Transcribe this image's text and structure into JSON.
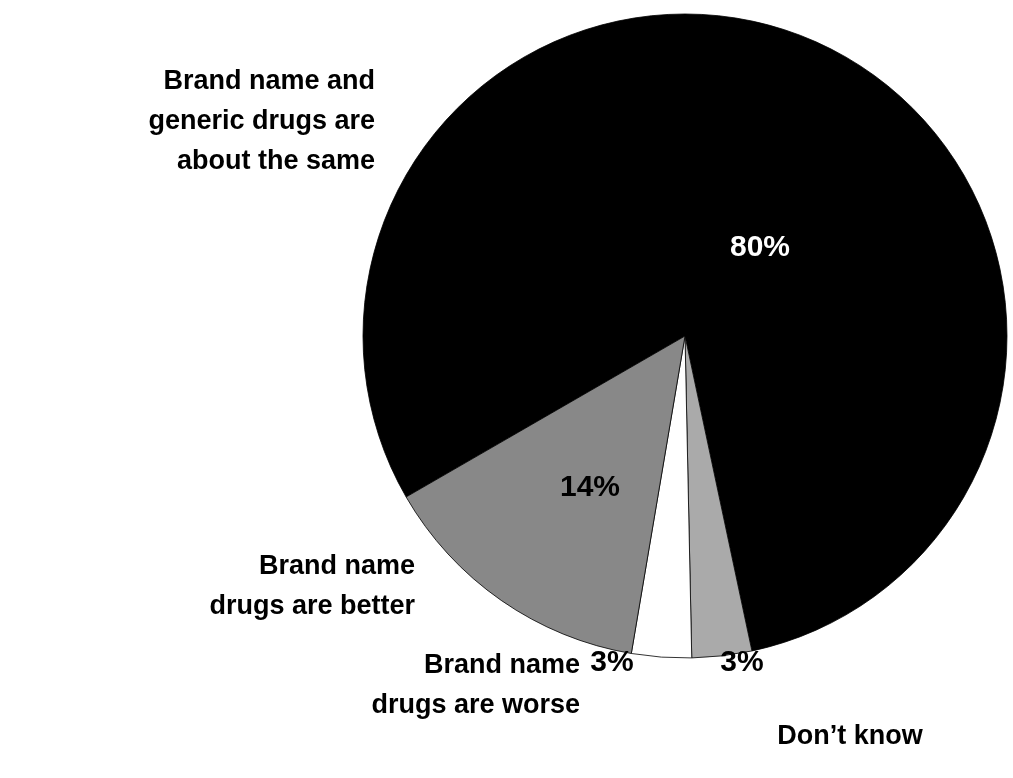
{
  "chart_data": {
    "type": "pie",
    "categories": [
      "Brand name and generic drugs are about the same",
      "Don’t know",
      "Brand name drugs are worse",
      "Brand name drugs are better"
    ],
    "values": [
      80,
      3,
      3,
      14
    ],
    "colors": [
      "#000000",
      "#aaaaaa",
      "#ffffff",
      "#888888"
    ],
    "value_labels": [
      "80%",
      "3%",
      "3%",
      "14%"
    ],
    "legend": false
  }
}
